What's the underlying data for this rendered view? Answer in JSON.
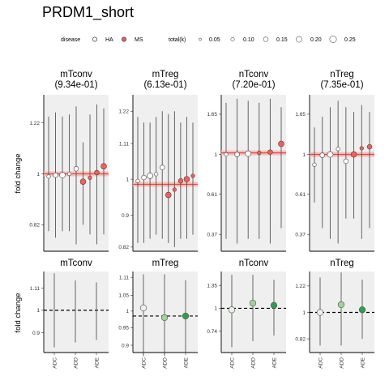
{
  "title": "PRDM1_short",
  "y_axis_label": "fold change",
  "legend": {
    "disease_title": "disease",
    "disease": [
      {
        "label": "HA",
        "color": "#ffffff"
      },
      {
        "label": "MS",
        "color": "#f0605a"
      }
    ],
    "size_title": "total(k)",
    "sizes": [
      "0.05",
      "0.10",
      "0.15",
      "0.20",
      "0.25"
    ]
  },
  "colors": {
    "panel_bg": "#efefef",
    "ha_fill": "#ffffff",
    "ms_fill": "#f0605a",
    "ref_line": "#e84b43",
    "ref_band": "#f3b9b3",
    "whisker": "#555555",
    "green_light": "#e8f4e5",
    "green_mid": "#9ed598",
    "green_dark": "#2f9f4b"
  },
  "chart_data": [
    {
      "type": "scatter",
      "panel": "mTconv",
      "subtitle": "(9.34e-01)",
      "y_ticks": [
        "0.82",
        "1",
        "1.22"
      ],
      "ylim": [
        0.74,
        1.36
      ],
      "reference_value": 1.0,
      "points": [
        {
          "group": "HA",
          "y": 0.99,
          "lo": 0.8,
          "hi": 1.25
        },
        {
          "group": "HA",
          "y": 0.995,
          "lo": 0.78,
          "hi": 1.27
        },
        {
          "group": "HA",
          "y": 0.995,
          "lo": 0.8,
          "hi": 1.25
        },
        {
          "group": "HA",
          "y": 1.0,
          "lo": 0.8,
          "hi": 1.26
        },
        {
          "group": "HA",
          "y": 1.02,
          "lo": 0.76,
          "hi": 1.3
        },
        {
          "group": "MS",
          "y": 0.97,
          "lo": 0.82,
          "hi": 1.13
        },
        {
          "group": "MS",
          "y": 0.985,
          "lo": 0.79,
          "hi": 1.26
        },
        {
          "group": "MS",
          "y": 1.005,
          "lo": 0.76,
          "hi": 1.31
        },
        {
          "group": "MS",
          "y": 1.03,
          "lo": 0.79,
          "hi": 1.29
        }
      ]
    },
    {
      "type": "scatter",
      "panel": "mTreg",
      "subtitle": "(6.13e-01)",
      "y_ticks": [
        "0.82",
        "0.9",
        "1",
        "1.11",
        "1.22"
      ],
      "ylim": [
        0.81,
        1.28
      ],
      "reference_value": 0.985,
      "points": [
        {
          "group": "HA",
          "y": 0.995,
          "lo": 0.83,
          "hi": 1.2
        },
        {
          "group": "HA",
          "y": 1.005,
          "lo": 0.83,
          "hi": 1.18
        },
        {
          "group": "HA",
          "y": 1.01,
          "lo": 0.84,
          "hi": 1.18
        },
        {
          "group": "HA",
          "y": 1.015,
          "lo": 0.85,
          "hi": 1.2
        },
        {
          "group": "HA",
          "y": 1.035,
          "lo": 0.84,
          "hi": 1.22
        },
        {
          "group": "MS",
          "y": 0.955,
          "lo": 0.83,
          "hi": 1.21
        },
        {
          "group": "MS",
          "y": 0.97,
          "lo": 0.82,
          "hi": 1.22
        },
        {
          "group": "MS",
          "y": 0.995,
          "lo": 0.84,
          "hi": 1.18
        },
        {
          "group": "MS",
          "y": 1.0,
          "lo": 0.84,
          "hi": 1.2
        },
        {
          "group": "MS",
          "y": 1.01,
          "lo": 0.85,
          "hi": 1.18
        }
      ]
    },
    {
      "type": "scatter",
      "panel": "nTconv",
      "subtitle": "(7.20e-01)",
      "y_ticks": [
        "0.37",
        "0.61",
        "1",
        "1.65"
      ],
      "ylim": [
        0.3,
        2.1
      ],
      "reference_value": 1.02,
      "points": [
        {
          "group": "HA",
          "y": 1.0,
          "lo": 0.35,
          "hi": 1.9
        },
        {
          "group": "HA",
          "y": 1.0,
          "lo": 0.33,
          "hi": 2.0
        },
        {
          "group": "HA",
          "y": 1.01,
          "lo": 0.35,
          "hi": 1.95
        },
        {
          "group": "MS",
          "y": 1.02,
          "lo": 0.35,
          "hi": 1.9
        },
        {
          "group": "MS",
          "y": 1.03,
          "lo": 0.33,
          "hi": 2.0
        },
        {
          "group": "MS",
          "y": 1.14,
          "lo": 0.4,
          "hi": 1.8
        }
      ]
    },
    {
      "type": "scatter",
      "panel": "nTreg",
      "subtitle": "(7.35e-01)",
      "y_ticks": [
        "0.37",
        "0.61",
        "1",
        "1.65"
      ],
      "ylim": [
        0.3,
        2.1
      ],
      "reference_value": 1.0,
      "points": [
        {
          "group": "HA",
          "y": 0.88,
          "lo": 0.55,
          "hi": 1.4
        },
        {
          "group": "HA",
          "y": 0.99,
          "lo": 0.4,
          "hi": 1.6
        },
        {
          "group": "HA",
          "y": 1.0,
          "lo": 0.35,
          "hi": 1.8
        },
        {
          "group": "HA",
          "y": 1.07,
          "lo": 0.33,
          "hi": 1.95
        },
        {
          "group": "HA",
          "y": 0.92,
          "lo": 0.45,
          "hi": 1.8
        },
        {
          "group": "MS",
          "y": 1.0,
          "lo": 0.45,
          "hi": 1.7
        },
        {
          "group": "MS",
          "y": 1.08,
          "lo": 0.35,
          "hi": 1.85
        },
        {
          "group": "MS",
          "y": 1.1,
          "lo": 0.4,
          "hi": 1.7
        }
      ]
    },
    {
      "type": "scatter",
      "panel": "mTconv",
      "categories": [
        "ADC",
        "ADD",
        "ADE"
      ],
      "y_ticks": [
        "0.9",
        "1",
        "1.11"
      ],
      "ylim": [
        0.82,
        1.2
      ],
      "reference_value": 1.0,
      "points": [
        {
          "category": "ADC",
          "y": 1.0,
          "lo": 0.84,
          "hi": 1.19,
          "shade": "none"
        },
        {
          "category": "ADD",
          "y": 1.0,
          "lo": 0.86,
          "hi": 1.15,
          "shade": "none"
        },
        {
          "category": "ADE",
          "y": 1.0,
          "lo": 0.87,
          "hi": 1.14,
          "shade": "none"
        }
      ]
    },
    {
      "type": "scatter",
      "panel": "mTreg",
      "categories": [
        "ADC",
        "ADD",
        "ADE"
      ],
      "y_ticks": [
        "0.9",
        "0.95",
        "1",
        "1.05",
        "1.11"
      ],
      "ylim": [
        0.88,
        1.13
      ],
      "reference_value": 0.985,
      "points": [
        {
          "category": "ADC",
          "y": 1.01,
          "lo": 0.87,
          "hi": 1.12,
          "shade": "light"
        },
        {
          "category": "ADD",
          "y": 0.98,
          "lo": 0.87,
          "hi": 1.12,
          "shade": "mid"
        },
        {
          "category": "ADE",
          "y": 0.985,
          "lo": 0.88,
          "hi": 1.1,
          "shade": "dark"
        }
      ]
    },
    {
      "type": "scatter",
      "panel": "nTconv",
      "categories": [
        "ADC",
        "ADD",
        "ADE"
      ],
      "y_ticks": [
        "0.74",
        "1",
        "1.35"
      ],
      "ylim": [
        0.56,
        1.62
      ],
      "reference_value": 1.0,
      "points": [
        {
          "category": "ADC",
          "y": 0.98,
          "lo": 0.6,
          "hi": 1.55,
          "shade": "light"
        },
        {
          "category": "ADD",
          "y": 1.07,
          "lo": 0.65,
          "hi": 1.55,
          "shade": "mid"
        },
        {
          "category": "ADE",
          "y": 1.04,
          "lo": 0.7,
          "hi": 1.45,
          "shade": "dark"
        }
      ]
    },
    {
      "type": "scatter",
      "panel": "nTreg",
      "categories": [
        "ADC",
        "ADD",
        "ADE"
      ],
      "y_ticks": [
        "0.82",
        "1",
        "1.22"
      ],
      "ylim": [
        0.74,
        1.36
      ],
      "reference_value": 1.0,
      "points": [
        {
          "category": "ADC",
          "y": 1.0,
          "lo": 0.78,
          "hi": 1.3,
          "shade": "light"
        },
        {
          "category": "ADD",
          "y": 1.06,
          "lo": 0.78,
          "hi": 1.35,
          "shade": "mid"
        },
        {
          "category": "ADE",
          "y": 1.02,
          "lo": 0.82,
          "hi": 1.28,
          "shade": "dark"
        }
      ]
    }
  ]
}
